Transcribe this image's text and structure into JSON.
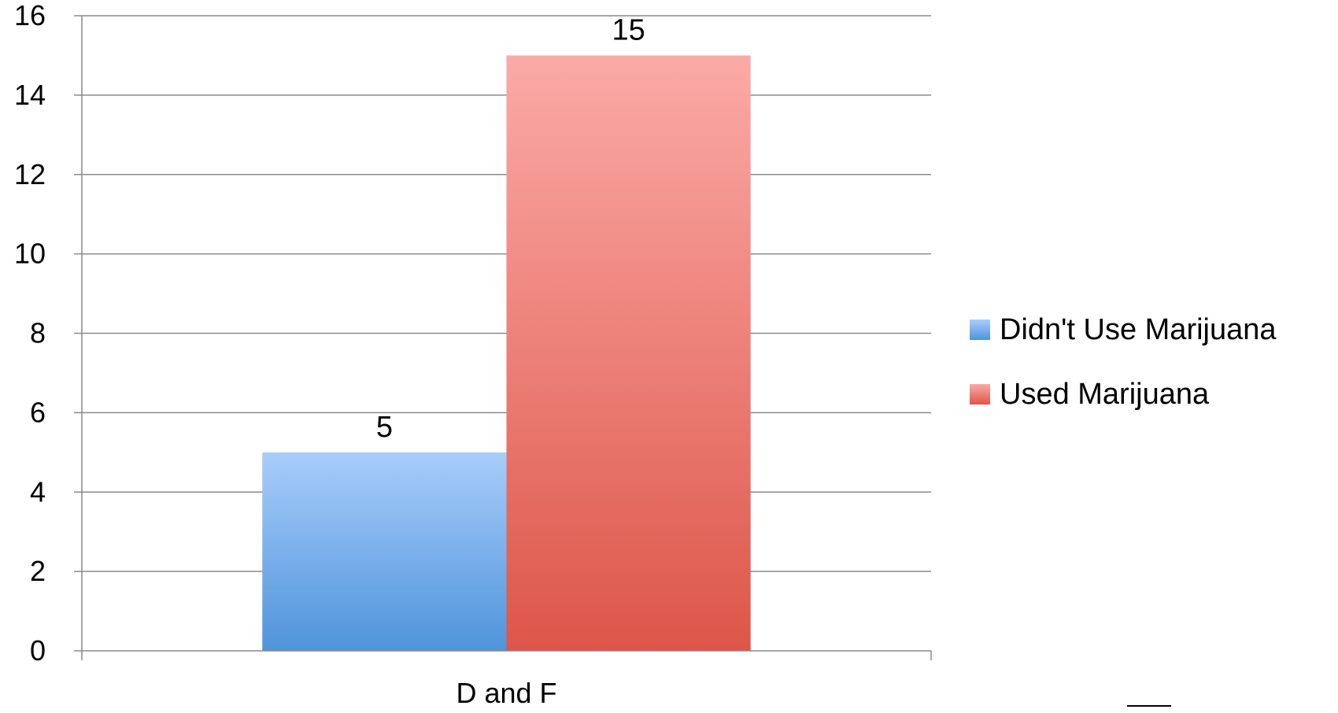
{
  "chart_data": {
    "type": "bar",
    "categories": [
      "D and F"
    ],
    "series": [
      {
        "name": "Didn't Use Marijuana",
        "values": [
          5
        ],
        "color": "#6fa3e6"
      },
      {
        "name": "Used Marijuana",
        "values": [
          15
        ],
        "color": "#ea6f66"
      }
    ],
    "data_labels": [
      "5",
      "15"
    ],
    "ylim": [
      0,
      16
    ],
    "yticks": [
      "0",
      "2",
      "4",
      "6",
      "8",
      "10",
      "12",
      "14",
      "16"
    ],
    "grid": true,
    "legend_position": "right"
  }
}
